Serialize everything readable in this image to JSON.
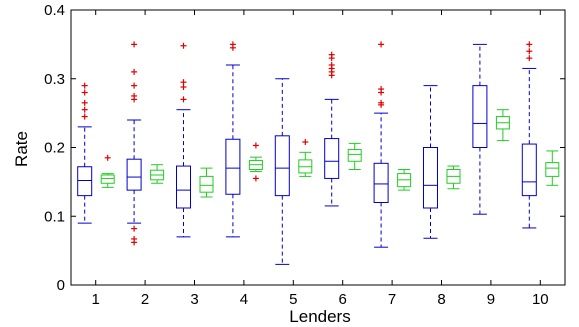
{
  "chart_data": {
    "type": "box",
    "title": "",
    "xlabel": "Lenders",
    "ylabel": "Rate",
    "ylim": [
      0,
      0.4
    ],
    "yticks": [
      0,
      0.1,
      0.2,
      0.3,
      0.4
    ],
    "ytick_labels": [
      "0",
      "0.1",
      "0.2",
      "0.3",
      "0.4"
    ],
    "categories": [
      "1",
      "2",
      "3",
      "4",
      "5",
      "6",
      "7",
      "8",
      "9",
      "10"
    ],
    "grid": false,
    "outlier_color": "#e00000",
    "series": [
      {
        "color": "#0000cc",
        "whisker_style": "dashed",
        "boxes": [
          {
            "min": 0.09,
            "q1": 0.13,
            "median": 0.152,
            "q3": 0.172,
            "max": 0.23,
            "outliers": [
              0.245,
              0.255,
              0.265,
              0.28,
              0.29
            ]
          },
          {
            "min": 0.09,
            "q1": 0.138,
            "median": 0.157,
            "q3": 0.183,
            "max": 0.24,
            "outliers": [
              0.082,
              0.067,
              0.062,
              0.27,
              0.275,
              0.29,
              0.31,
              0.35
            ]
          },
          {
            "min": 0.07,
            "q1": 0.112,
            "median": 0.138,
            "q3": 0.173,
            "max": 0.255,
            "outliers": [
              0.27,
              0.288,
              0.295,
              0.348
            ]
          },
          {
            "min": 0.07,
            "q1": 0.132,
            "median": 0.17,
            "q3": 0.212,
            "max": 0.32,
            "outliers": [
              0.35,
              0.345
            ]
          },
          {
            "min": 0.03,
            "q1": 0.13,
            "median": 0.17,
            "q3": 0.217,
            "max": 0.3,
            "outliers": []
          },
          {
            "min": 0.115,
            "q1": 0.155,
            "median": 0.18,
            "q3": 0.213,
            "max": 0.27,
            "outliers": [
              0.305,
              0.31,
              0.315,
              0.32,
              0.33,
              0.335
            ]
          },
          {
            "min": 0.055,
            "q1": 0.12,
            "median": 0.147,
            "q3": 0.177,
            "max": 0.25,
            "outliers": [
              0.262,
              0.265,
              0.28,
              0.285,
              0.35
            ]
          },
          {
            "min": 0.068,
            "q1": 0.112,
            "median": 0.145,
            "q3": 0.2,
            "max": 0.29,
            "outliers": []
          },
          {
            "min": 0.103,
            "q1": 0.2,
            "median": 0.235,
            "q3": 0.29,
            "max": 0.35,
            "outliers": []
          },
          {
            "min": 0.083,
            "q1": 0.13,
            "median": 0.15,
            "q3": 0.205,
            "max": 0.315,
            "outliers": [
              0.33,
              0.34,
              0.35
            ]
          }
        ]
      },
      {
        "color": "#22cc22",
        "whisker_style": "solid",
        "boxes": [
          {
            "min": 0.142,
            "q1": 0.148,
            "median": 0.155,
            "q3": 0.16,
            "max": 0.162,
            "outliers": [
              0.185
            ]
          },
          {
            "min": 0.148,
            "q1": 0.153,
            "median": 0.16,
            "q3": 0.167,
            "max": 0.175,
            "outliers": []
          },
          {
            "min": 0.128,
            "q1": 0.135,
            "median": 0.145,
            "q3": 0.158,
            "max": 0.17,
            "outliers": []
          },
          {
            "min": 0.165,
            "q1": 0.168,
            "median": 0.175,
            "q3": 0.181,
            "max": 0.186,
            "outliers": [
              0.155,
              0.203
            ]
          },
          {
            "min": 0.158,
            "q1": 0.163,
            "median": 0.172,
            "q3": 0.182,
            "max": 0.193,
            "outliers": [
              0.208
            ]
          },
          {
            "min": 0.168,
            "q1": 0.18,
            "median": 0.19,
            "q3": 0.197,
            "max": 0.206,
            "outliers": []
          },
          {
            "min": 0.138,
            "q1": 0.143,
            "median": 0.153,
            "q3": 0.162,
            "max": 0.168,
            "outliers": []
          },
          {
            "min": 0.14,
            "q1": 0.148,
            "median": 0.158,
            "q3": 0.168,
            "max": 0.173,
            "outliers": []
          },
          {
            "min": 0.21,
            "q1": 0.227,
            "median": 0.236,
            "q3": 0.245,
            "max": 0.255,
            "outliers": []
          },
          {
            "min": 0.145,
            "q1": 0.158,
            "median": 0.17,
            "q3": 0.178,
            "max": 0.195,
            "outliers": []
          }
        ]
      }
    ]
  }
}
